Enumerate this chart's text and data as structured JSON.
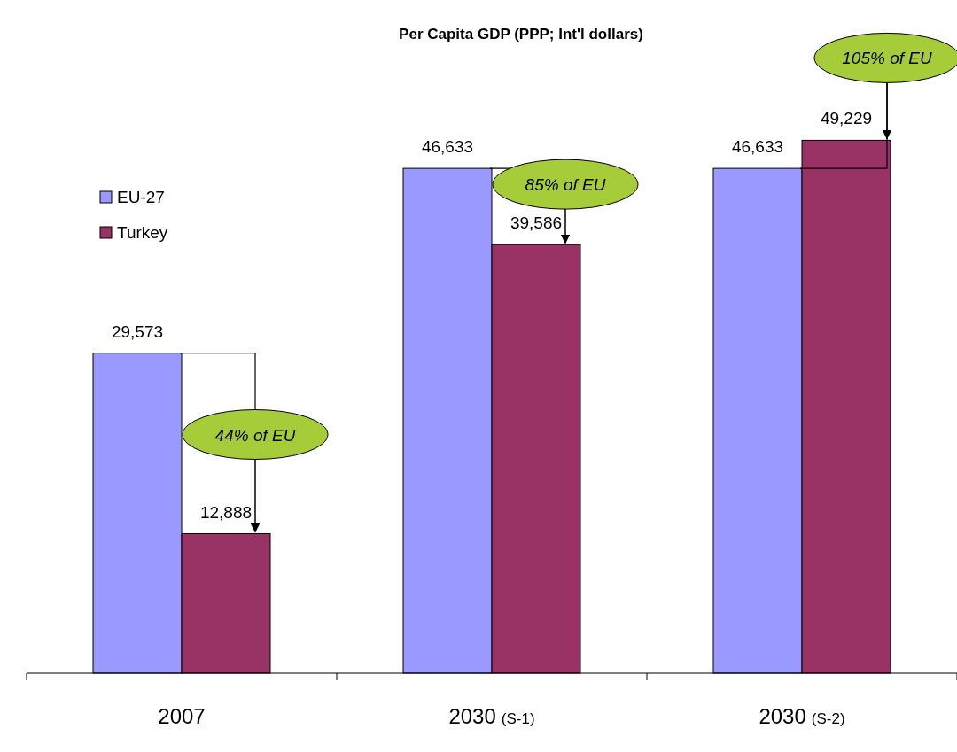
{
  "chart_data": {
    "type": "bar",
    "title": "Per Capita GDP (PPP; Int'l dollars)",
    "categories": [
      "2007",
      "2030 (S-1)",
      "2030 (S-2)"
    ],
    "series": [
      {
        "name": "EU-27",
        "color": "#9999ff",
        "values": [
          29573,
          46633,
          46633
        ],
        "value_labels": [
          "29,573",
          "46,633",
          "46,633"
        ]
      },
      {
        "name": "Turkey",
        "color": "#993366",
        "values": [
          12888,
          39586,
          49229
        ],
        "value_labels": [
          "12,888",
          "39,586",
          "49,229"
        ]
      }
    ],
    "legend": "top left",
    "annotations": [
      "44% of EU",
      "85% of EU",
      "105% of EU"
    ]
  }
}
